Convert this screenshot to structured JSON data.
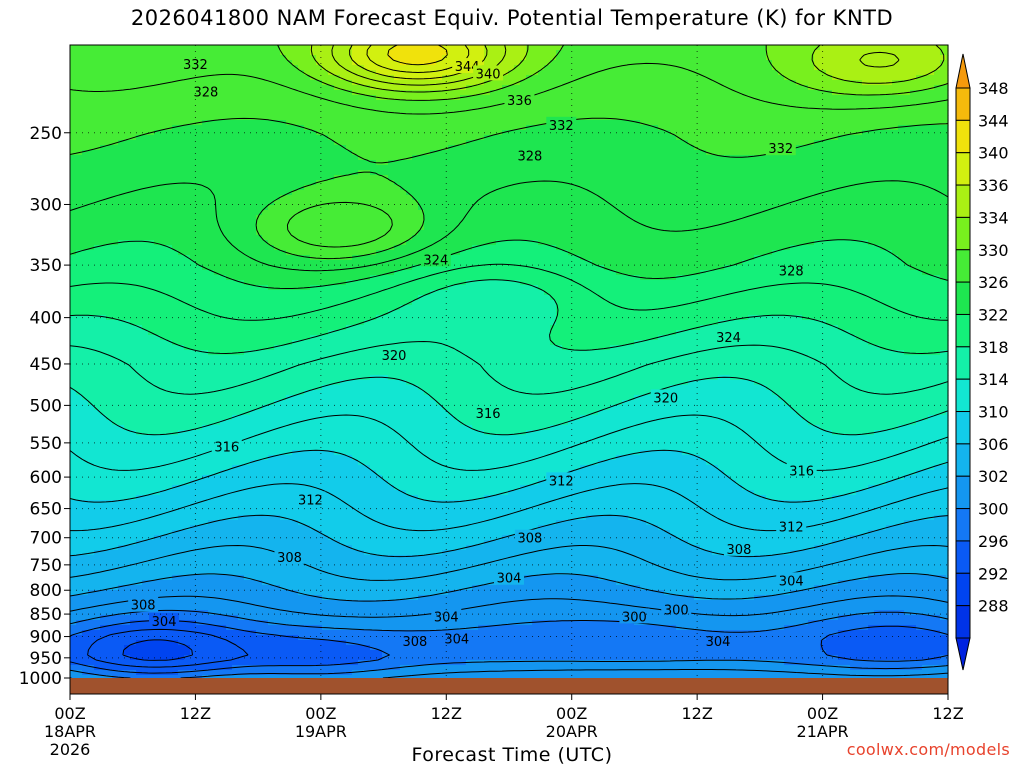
{
  "chart_data": {
    "type": "heatmap",
    "title": "2026041800 NAM Forecast Equiv. Potential Temperature (K) for KNTD",
    "xlabel": "Forecast Time (UTC)",
    "ylabel": "",
    "credit": "coolwx.com/models",
    "y_axis": {
      "scale": "log-pressure",
      "direction": "inverted",
      "range": [
        1000,
        200
      ],
      "ticks": [
        250,
        300,
        350,
        400,
        450,
        500,
        550,
        600,
        650,
        700,
        750,
        800,
        850,
        900,
        950,
        1000
      ]
    },
    "x_axis": {
      "range_hours": [
        0,
        84
      ],
      "ticks": [
        {
          "hour": 0,
          "label": "00Z",
          "date": "18APR",
          "year": "2026"
        },
        {
          "hour": 12,
          "label": "12Z"
        },
        {
          "hour": 24,
          "label": "00Z",
          "date": "19APR"
        },
        {
          "hour": 36,
          "label": "12Z"
        },
        {
          "hour": 48,
          "label": "00Z",
          "date": "20APR"
        },
        {
          "hour": 60,
          "label": "12Z"
        },
        {
          "hour": 72,
          "label": "00Z",
          "date": "21APR"
        },
        {
          "hour": 84,
          "label": "12Z"
        }
      ]
    },
    "grid": true,
    "colorbar": {
      "position": "right",
      "units": "K",
      "levels": [
        288,
        292,
        296,
        300,
        302,
        306,
        310,
        314,
        318,
        322,
        326,
        330,
        334,
        336,
        340,
        344,
        348
      ],
      "colors": [
        "#0022e0",
        "#0033e8",
        "#0044f0",
        "#0a5af5",
        "#1478f5",
        "#1496f0",
        "#14b4ee",
        "#12ccea",
        "#12e6d2",
        "#14f0a8",
        "#14f07a",
        "#1ee650",
        "#46ec36",
        "#78f01e",
        "#aaf014",
        "#d2f010",
        "#f0e20c",
        "#f5ba0c",
        "#f59a0c"
      ]
    },
    "profile_mean": [
      {
        "p": 200,
        "theta_e": 333
      },
      {
        "p": 250,
        "theta_e": 330
      },
      {
        "p": 300,
        "theta_e": 328
      },
      {
        "p": 350,
        "theta_e": 326
      },
      {
        "p": 400,
        "theta_e": 323
      },
      {
        "p": 450,
        "theta_e": 320
      },
      {
        "p": 500,
        "theta_e": 318
      },
      {
        "p": 550,
        "theta_e": 316
      },
      {
        "p": 600,
        "theta_e": 314
      },
      {
        "p": 650,
        "theta_e": 312
      },
      {
        "p": 700,
        "theta_e": 310
      },
      {
        "p": 750,
        "theta_e": 308
      },
      {
        "p": 800,
        "theta_e": 306
      },
      {
        "p": 850,
        "theta_e": 304
      },
      {
        "p": 900,
        "theta_e": 302
      },
      {
        "p": 950,
        "theta_e": 302
      },
      {
        "p": 1000,
        "theta_e": 306
      }
    ],
    "features": [
      {
        "hour": 33,
        "p": 205,
        "theta_e": 345
      },
      {
        "hour": 78,
        "p": 210,
        "theta_e": 338
      },
      {
        "hour": 26,
        "p": 320,
        "theta_e": 333
      },
      {
        "hour": 8,
        "p": 940,
        "theta_e": 296
      },
      {
        "hour": 24,
        "p": 960,
        "theta_e": 299
      },
      {
        "hour": 55,
        "p": 900,
        "theta_e": 300
      },
      {
        "hour": 80,
        "p": 920,
        "theta_e": 299
      },
      {
        "hour": 42,
        "p": 380,
        "theta_e": 321
      }
    ],
    "contour_labels": [
      {
        "hour": 12,
        "p": 210,
        "value": "332"
      },
      {
        "hour": 13,
        "p": 225,
        "value": "328"
      },
      {
        "hour": 38,
        "p": 211,
        "value": "344"
      },
      {
        "hour": 40,
        "p": 215,
        "value": "340"
      },
      {
        "hour": 43,
        "p": 230,
        "value": "336"
      },
      {
        "hour": 47,
        "p": 245,
        "value": "332"
      },
      {
        "hour": 44,
        "p": 265,
        "value": "328"
      },
      {
        "hour": 68,
        "p": 260,
        "value": "332"
      },
      {
        "hour": 35,
        "p": 345,
        "value": "324"
      },
      {
        "hour": 69,
        "p": 355,
        "value": "328"
      },
      {
        "hour": 63,
        "p": 420,
        "value": "324"
      },
      {
        "hour": 31,
        "p": 440,
        "value": "320"
      },
      {
        "hour": 57,
        "p": 490,
        "value": "320"
      },
      {
        "hour": 40,
        "p": 510,
        "value": "316"
      },
      {
        "hour": 15,
        "p": 555,
        "value": "316"
      },
      {
        "hour": 70,
        "p": 590,
        "value": "316"
      },
      {
        "hour": 47,
        "p": 605,
        "value": "312"
      },
      {
        "hour": 23,
        "p": 635,
        "value": "312"
      },
      {
        "hour": 69,
        "p": 680,
        "value": "312"
      },
      {
        "hour": 44,
        "p": 700,
        "value": "308"
      },
      {
        "hour": 64,
        "p": 720,
        "value": "308"
      },
      {
        "hour": 21,
        "p": 735,
        "value": "308"
      },
      {
        "hour": 42,
        "p": 775,
        "value": "304"
      },
      {
        "hour": 69,
        "p": 780,
        "value": "304"
      },
      {
        "hour": 7,
        "p": 830,
        "value": "308"
      },
      {
        "hour": 9,
        "p": 865,
        "value": "304"
      },
      {
        "hour": 36,
        "p": 855,
        "value": "304"
      },
      {
        "hour": 54,
        "p": 855,
        "value": "300"
      },
      {
        "hour": 58,
        "p": 840,
        "value": "300"
      },
      {
        "hour": 33,
        "p": 910,
        "value": "308"
      },
      {
        "hour": 37,
        "p": 905,
        "value": "304"
      },
      {
        "hour": 62,
        "p": 910,
        "value": "304"
      }
    ]
  }
}
